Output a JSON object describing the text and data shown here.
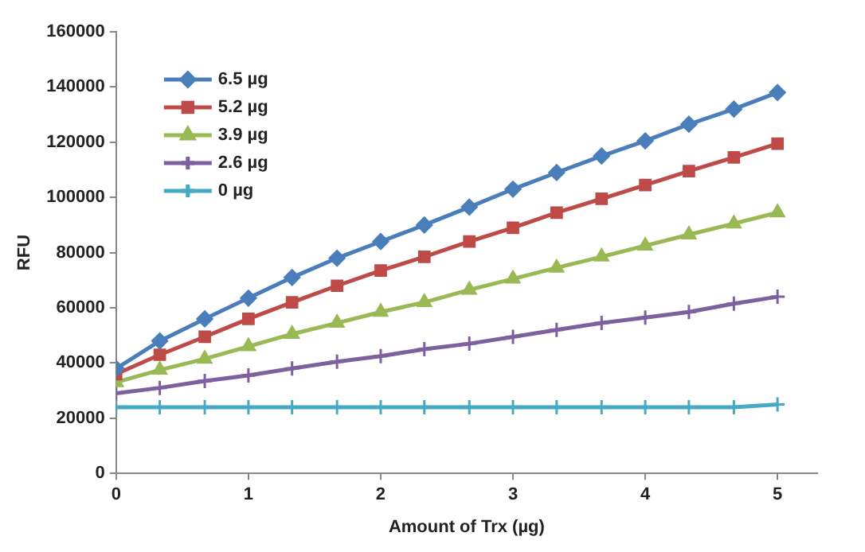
{
  "chart_data": {
    "type": "line",
    "xlabel": "Amount of Trx (µg)",
    "ylabel": "RFU",
    "x": [
      0,
      0.33,
      0.67,
      1,
      1.33,
      1.67,
      2,
      2.33,
      2.67,
      3,
      3.33,
      3.67,
      4,
      4.33,
      4.67,
      5
    ],
    "xlim": [
      0,
      5.3
    ],
    "xticks": [
      0,
      1,
      2,
      3,
      4,
      5
    ],
    "ylim": [
      0,
      160000
    ],
    "yticks": [
      0,
      20000,
      40000,
      60000,
      80000,
      100000,
      120000,
      140000,
      160000
    ],
    "grid": false,
    "legend": "top left",
    "line_style": "solid",
    "series": [
      {
        "name": "6.5 µg",
        "color": "#4a7ebb",
        "marker": "diamond",
        "values": [
          38000,
          48000,
          56000,
          63500,
          71000,
          78000,
          84000,
          90000,
          96500,
          103000,
          109000,
          115000,
          120500,
          126500,
          132000,
          138000
        ]
      },
      {
        "name": "5.2 µg",
        "color": "#be4b48",
        "marker": "square",
        "values": [
          36000,
          43000,
          49500,
          56000,
          62000,
          68000,
          73500,
          78500,
          84000,
          89000,
          94500,
          99500,
          104500,
          109500,
          114500,
          119500
        ]
      },
      {
        "name": "3.9 µg",
        "color": "#98b954",
        "marker": "triangle",
        "values": [
          33000,
          37500,
          41500,
          46000,
          50500,
          54500,
          58500,
          62000,
          66500,
          70500,
          74500,
          78500,
          82500,
          86500,
          90500,
          94500
        ]
      },
      {
        "name": "2.6 µg",
        "color": "#7d60a0",
        "marker": "cross",
        "values": [
          29000,
          31000,
          33500,
          35500,
          38000,
          40500,
          42500,
          45000,
          47000,
          49500,
          52000,
          54500,
          56500,
          58500,
          61500,
          64000
        ]
      },
      {
        "name": "0 µg",
        "color": "#46aac5",
        "marker": "cross",
        "values": [
          24000,
          24000,
          24000,
          24000,
          24000,
          24000,
          24000,
          24000,
          24000,
          24000,
          24000,
          24000,
          24000,
          24000,
          24000,
          25000
        ]
      }
    ]
  }
}
